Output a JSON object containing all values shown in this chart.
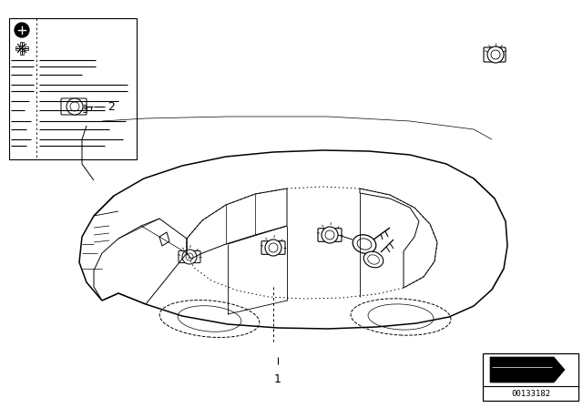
{
  "bg_color": "#ffffff",
  "line_color": "#000000",
  "fig_width": 6.4,
  "fig_height": 4.48,
  "dpi": 100,
  "part_number": "00133182",
  "label_1": "1",
  "label_2": "2"
}
